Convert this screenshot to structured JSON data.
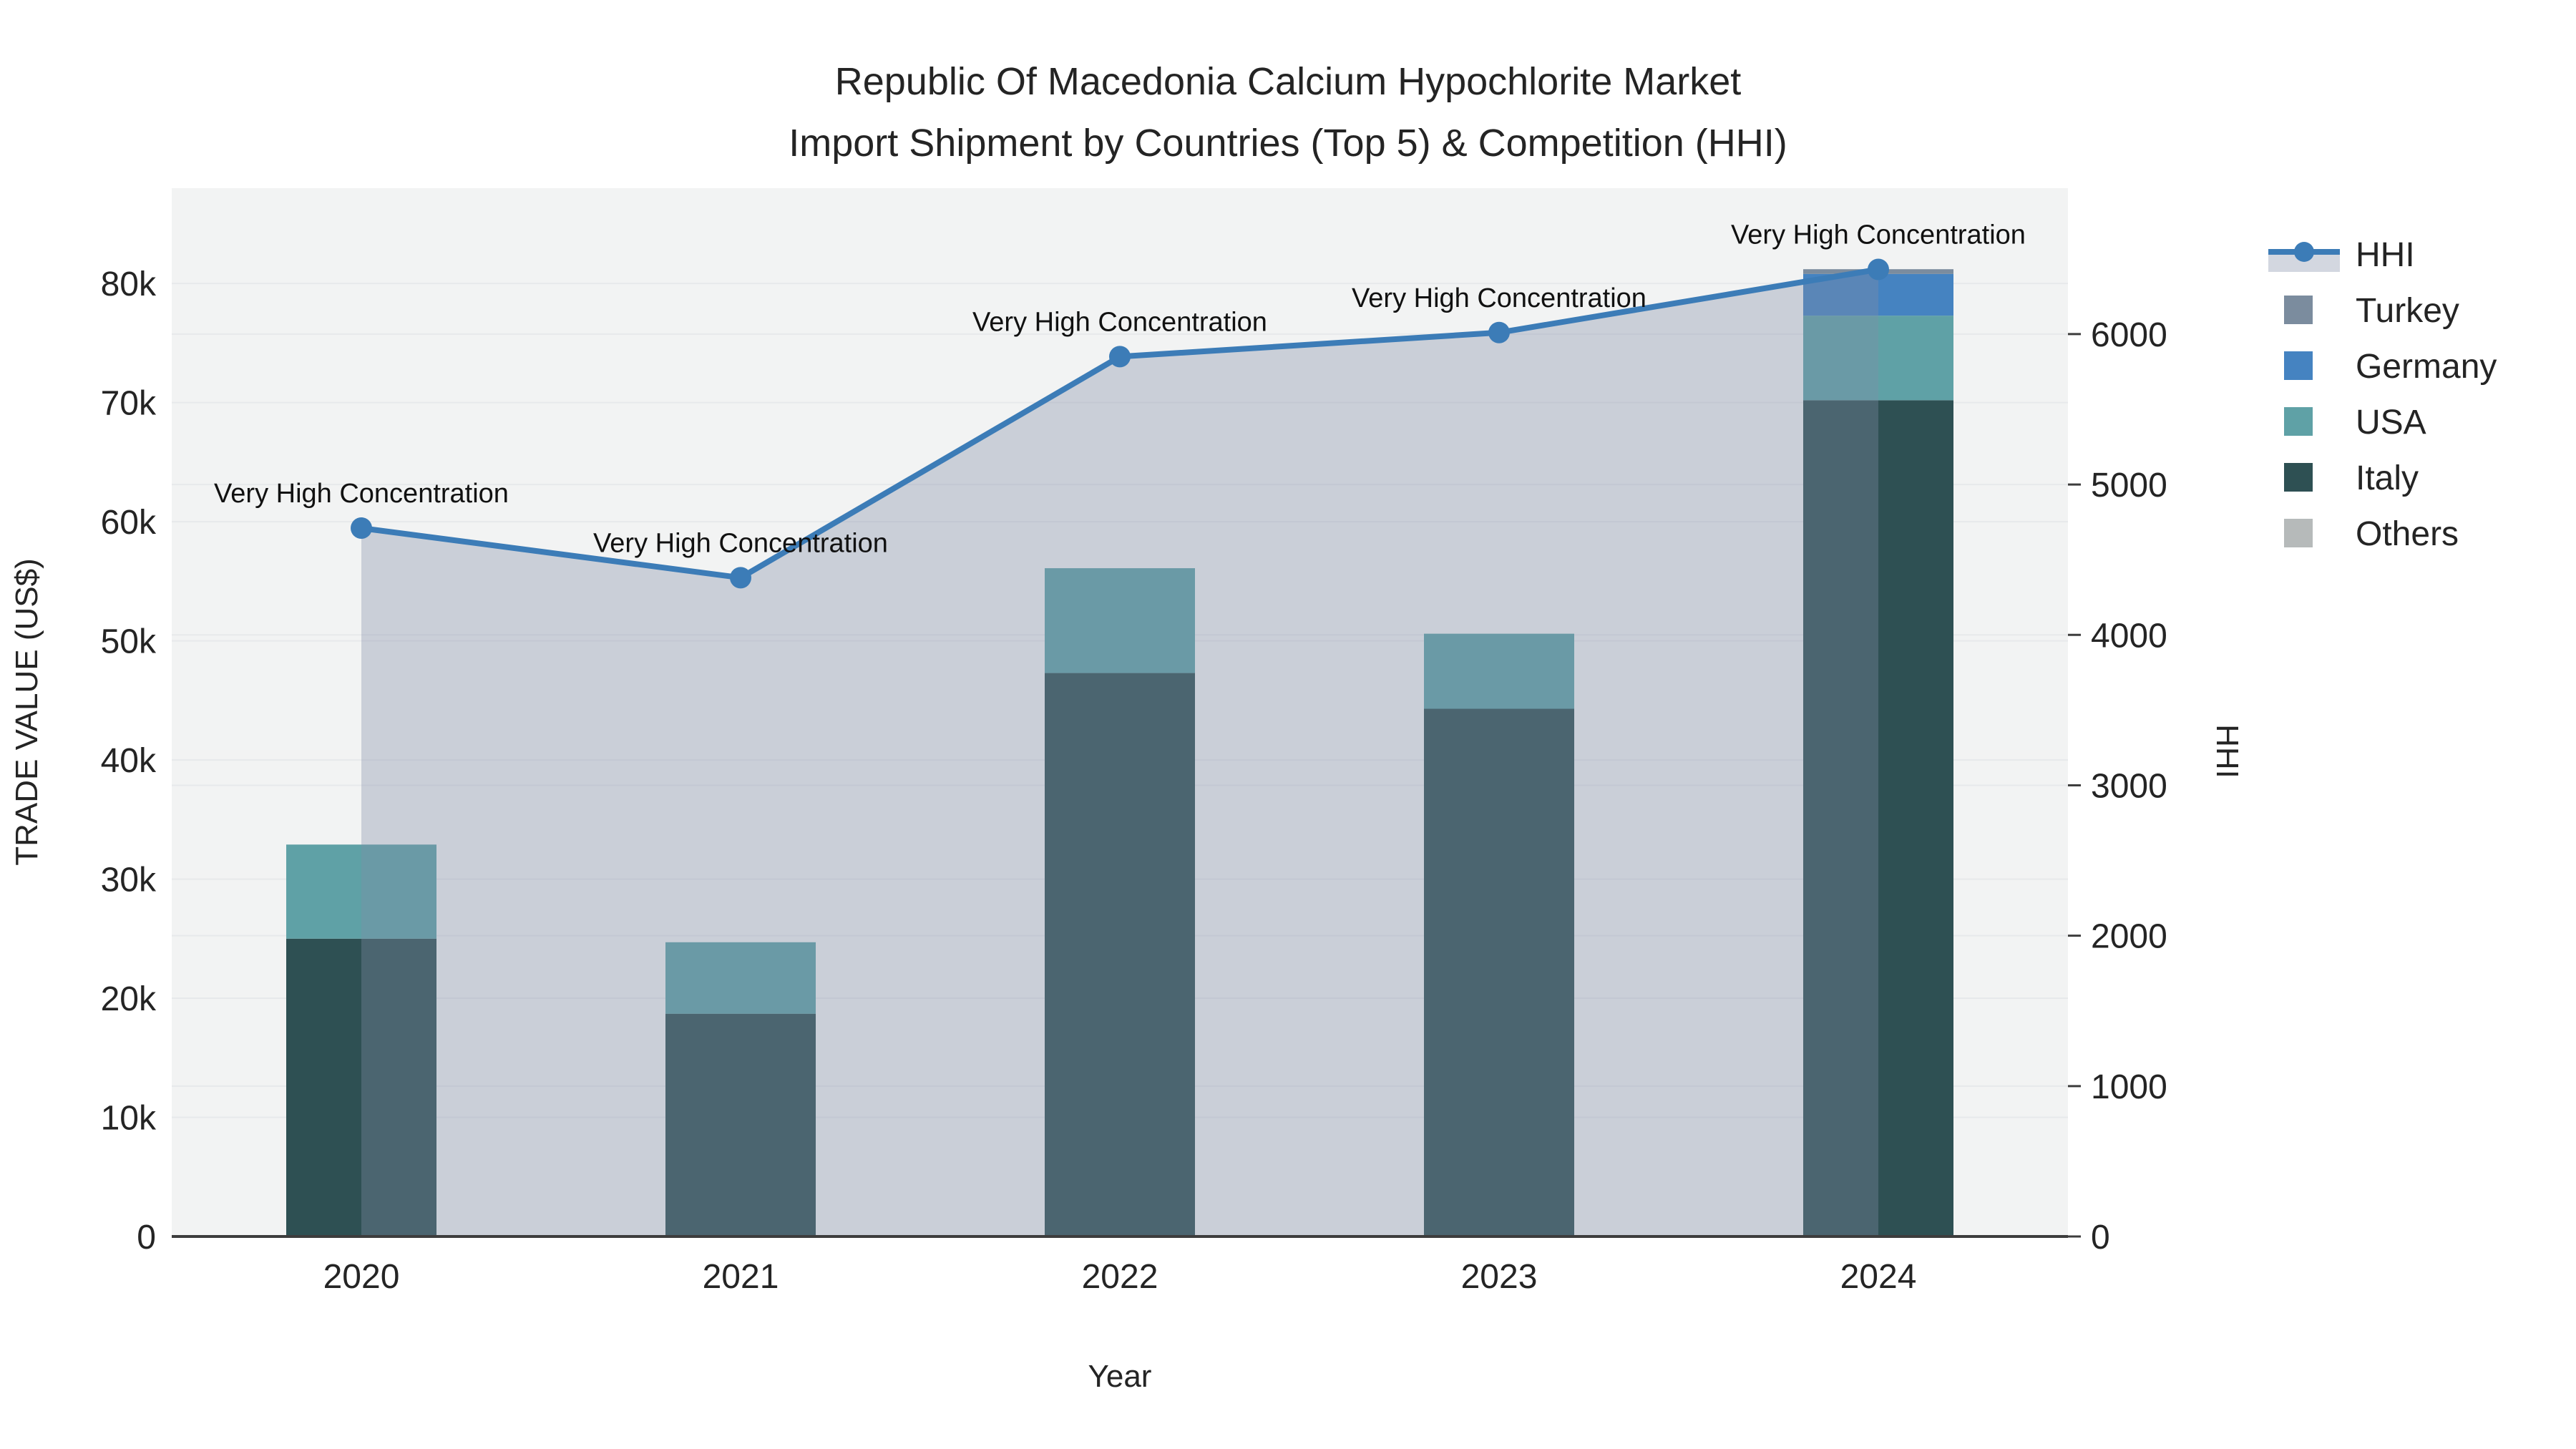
{
  "title": {
    "line1": "Republic Of Macedonia Calcium Hypochlorite Market",
    "line2": "Import Shipment by Countries (Top 5) & Competition (HHI)"
  },
  "axes": {
    "x": {
      "title": "Year",
      "categories": [
        "2020",
        "2021",
        "2022",
        "2023",
        "2024"
      ]
    },
    "y_left": {
      "title": "TRADE VALUE (US$)",
      "ticks": [
        {
          "label": "0",
          "value": 0
        },
        {
          "label": "10k",
          "value": 10000
        },
        {
          "label": "20k",
          "value": 20000
        },
        {
          "label": "30k",
          "value": 30000
        },
        {
          "label": "40k",
          "value": 40000
        },
        {
          "label": "50k",
          "value": 50000
        },
        {
          "label": "60k",
          "value": 60000
        },
        {
          "label": "70k",
          "value": 70000
        },
        {
          "label": "80k",
          "value": 80000
        }
      ]
    },
    "y_right": {
      "title": "HHI",
      "ticks": [
        {
          "label": "0",
          "value": 0
        },
        {
          "label": "1000",
          "value": 1000
        },
        {
          "label": "2000",
          "value": 2000
        },
        {
          "label": "3000",
          "value": 3000
        },
        {
          "label": "4000",
          "value": 4000
        },
        {
          "label": "5000",
          "value": 5000
        },
        {
          "label": "6000",
          "value": 6000
        }
      ]
    }
  },
  "legend": {
    "items": [
      {
        "label": "HHI",
        "type": "line",
        "color": "#3c7cb7"
      },
      {
        "label": "Turkey",
        "type": "square",
        "color": "#7b8c9e"
      },
      {
        "label": "Germany",
        "type": "square",
        "color": "#4583c1"
      },
      {
        "label": "USA",
        "type": "square",
        "color": "#5fa1a6"
      },
      {
        "label": "Italy",
        "type": "square",
        "color": "#2e5053"
      },
      {
        "label": "Others",
        "type": "square",
        "color": "#b6baba"
      }
    ]
  },
  "chart_data": {
    "type": "bar+line",
    "title": "Republic Of Macedonia Calcium Hypochlorite Market Import Shipment by Countries (Top 5) & Competition (HHI)",
    "xlabel": "Year",
    "ylabel_left": "TRADE VALUE (US$)",
    "ylabel_right": "HHI",
    "categories": [
      "2020",
      "2021",
      "2022",
      "2023",
      "2024"
    ],
    "bar_series": [
      {
        "name": "Italy",
        "color": "#2e5053",
        "values": [
          25000,
          18700,
          47300,
          44300,
          70200
        ]
      },
      {
        "name": "USA",
        "color": "#5fa1a6",
        "values": [
          7900,
          6000,
          8800,
          6300,
          7100
        ]
      },
      {
        "name": "Germany",
        "color": "#4583c1",
        "values": [
          0,
          0,
          0,
          0,
          3500
        ]
      },
      {
        "name": "Turkey",
        "color": "#7b8c9e",
        "values": [
          0,
          0,
          0,
          0,
          400
        ]
      },
      {
        "name": "Others",
        "color": "#b6baba",
        "values": [
          0,
          0,
          0,
          0,
          0
        ]
      }
    ],
    "line_series": {
      "name": "HHI",
      "color": "#3c7cb7",
      "axis": "right",
      "values": [
        4710,
        4380,
        5850,
        6010,
        6430
      ],
      "area_fill": "rgba(130,140,165,0.35)"
    },
    "point_annotations": [
      "Very High Concentration",
      "Very High Concentration",
      "Very High Concentration",
      "Very High Concentration",
      "Very High Concentration"
    ],
    "ylim_left": [
      0,
      88000
    ],
    "ylim_right": [
      0,
      6970
    ],
    "grid": true,
    "legend_position": "outside-top-right",
    "plot_bg": "#f2f3f3",
    "grid_color": "#e7e9eb",
    "axis_line_color": "#3d3d3d"
  }
}
